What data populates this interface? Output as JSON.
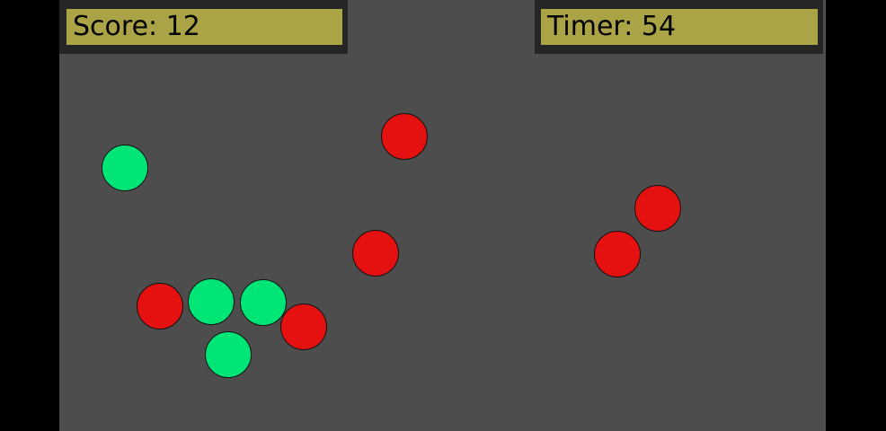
{
  "hud": {
    "score": "Score: 12",
    "timer": "Timer: 54"
  },
  "colors": {
    "background": "#4d4d4d",
    "hud_bar": "#aba446",
    "good_ball": "#00e676",
    "bad_ball": "#e51010"
  },
  "balls": [
    {
      "type": "good",
      "color": "#00e676"
    },
    {
      "type": "bad",
      "color": "#e51010"
    },
    {
      "type": "bad",
      "color": "#e51010"
    },
    {
      "type": "bad",
      "color": "#e51010"
    },
    {
      "type": "bad",
      "color": "#e51010"
    },
    {
      "type": "bad",
      "color": "#e51010"
    },
    {
      "type": "good",
      "color": "#00e676"
    },
    {
      "type": "good",
      "color": "#00e676"
    },
    {
      "type": "bad",
      "color": "#e51010"
    },
    {
      "type": "good",
      "color": "#00e676"
    }
  ]
}
